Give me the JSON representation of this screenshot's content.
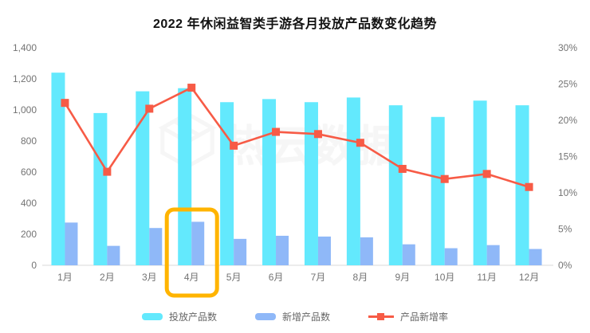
{
  "title": "2022 年休闲益智类手游各月投放产品数变化趋势",
  "watermark": "热云数据",
  "colors": {
    "placed_bar": "#63E9FD",
    "new_bar": "#8FB8F8",
    "rate_line": "#F75B46",
    "highlight_box": "#FFB400",
    "axis_text": "#737373",
    "axis_line": "#d9d9d9",
    "title_text": "#111111"
  },
  "chart_data": {
    "type": "bar",
    "title": "2022 年休闲益智类手游各月投放产品数变化趋势",
    "categories": [
      "1月",
      "2月",
      "3月",
      "4月",
      "5月",
      "6月",
      "7月",
      "8月",
      "9月",
      "10月",
      "11月",
      "12月"
    ],
    "series": [
      {
        "name": "投放产品数",
        "type": "bar",
        "axis": "left",
        "color": "#63E9FD",
        "values": [
          1240,
          980,
          1120,
          1140,
          1050,
          1070,
          1050,
          1080,
          1030,
          955,
          1060,
          1030
        ]
      },
      {
        "name": "新增产品数",
        "type": "bar",
        "axis": "left",
        "color": "#8FB8F8",
        "values": [
          275,
          125,
          240,
          280,
          170,
          190,
          185,
          180,
          135,
          110,
          130,
          105
        ]
      },
      {
        "name": "产品新增率",
        "type": "line",
        "axis": "right",
        "color": "#F75B46",
        "values": [
          22.4,
          12.9,
          21.6,
          24.5,
          16.5,
          18.4,
          18.1,
          16.9,
          13.3,
          11.9,
          12.6,
          10.8
        ]
      }
    ],
    "left_axis": {
      "min": 0,
      "max": 1400,
      "ticks": [
        "0",
        "200",
        "400",
        "600",
        "800",
        "1,000",
        "1,200",
        "1,400"
      ]
    },
    "right_axis": {
      "min": 0,
      "max": 30,
      "ticks": [
        "0%",
        "5%",
        "10%",
        "15%",
        "20%",
        "25%",
        "30%"
      ]
    },
    "highlight": {
      "category": "4月",
      "index": 3,
      "color": "#FFB400"
    },
    "legend_position": "bottom",
    "grid": false
  }
}
